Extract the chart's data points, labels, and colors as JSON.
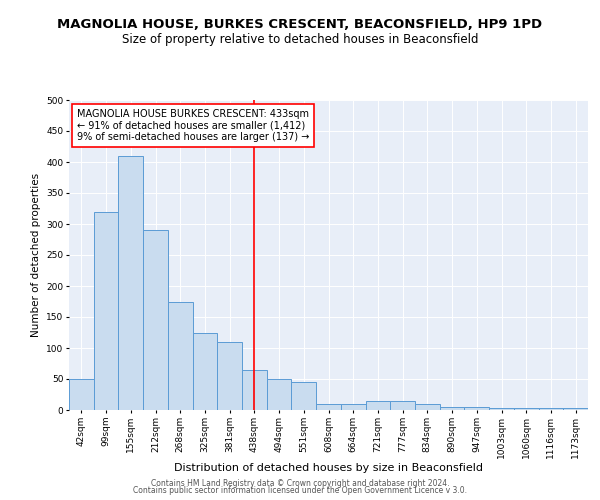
{
  "title": "MAGNOLIA HOUSE, BURKES CRESCENT, BEACONSFIELD, HP9 1PD",
  "subtitle": "Size of property relative to detached houses in Beaconsfield",
  "xlabel": "Distribution of detached houses by size in Beaconsfield",
  "ylabel": "Number of detached properties",
  "categories": [
    "42sqm",
    "99sqm",
    "155sqm",
    "212sqm",
    "268sqm",
    "325sqm",
    "381sqm",
    "438sqm",
    "494sqm",
    "551sqm",
    "608sqm",
    "664sqm",
    "721sqm",
    "777sqm",
    "834sqm",
    "890sqm",
    "947sqm",
    "1003sqm",
    "1060sqm",
    "1116sqm",
    "1173sqm"
  ],
  "values": [
    50,
    320,
    410,
    290,
    175,
    125,
    110,
    65,
    50,
    45,
    10,
    10,
    15,
    15,
    10,
    5,
    5,
    3,
    3,
    3,
    3
  ],
  "bar_color": "#c9dcef",
  "bar_edge_color": "#5b9bd5",
  "red_line_category": "438sqm",
  "annotation_text": "MAGNOLIA HOUSE BURKES CRESCENT: 433sqm\n← 91% of detached houses are smaller (1,412)\n9% of semi-detached houses are larger (137) →",
  "annotation_box_color": "white",
  "annotation_box_edge_color": "red",
  "ylim": [
    0,
    500
  ],
  "yticks": [
    0,
    50,
    100,
    150,
    200,
    250,
    300,
    350,
    400,
    450,
    500
  ],
  "footer_line1": "Contains HM Land Registry data © Crown copyright and database right 2024.",
  "footer_line2": "Contains public sector information licensed under the Open Government Licence v 3.0.",
  "bg_color": "#e8eef8",
  "title_fontsize": 9.5,
  "subtitle_fontsize": 8.5,
  "xlabel_fontsize": 8,
  "ylabel_fontsize": 7.5,
  "tick_fontsize": 6.5,
  "annot_fontsize": 7,
  "footer_fontsize": 5.5
}
